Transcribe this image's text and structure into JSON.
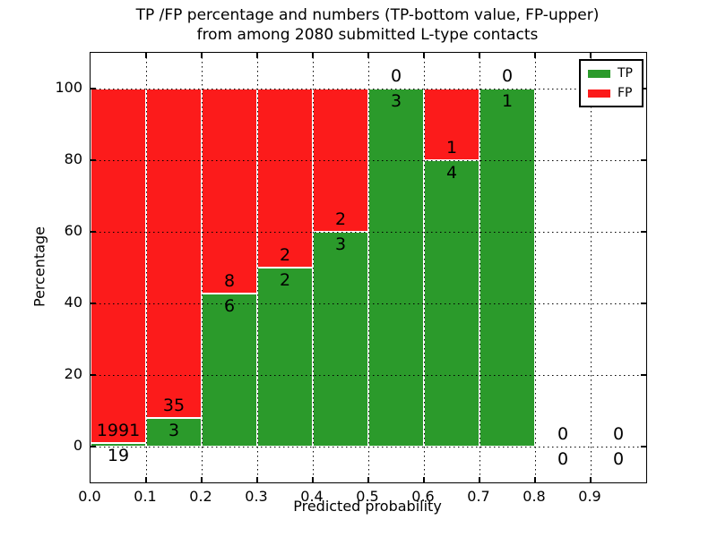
{
  "chart_data": {
    "type": "bar",
    "subtype": "stacked-percentage-histogram",
    "title_line1": "TP /FP percentage and numbers (TP-bottom value, FP-upper)",
    "title_line2": "from among 2080 submitted L-type contacts",
    "xlabel": "Predicted probability",
    "ylabel": "Percentage",
    "total_contacts": 2080,
    "x_tick_labels": [
      "0.0",
      "0.1",
      "0.2",
      "0.3",
      "0.4",
      "0.5",
      "0.6",
      "0.7",
      "0.8",
      "0.9"
    ],
    "y_ticks": [
      0,
      20,
      40,
      60,
      80,
      100
    ],
    "xlim": [
      0.0,
      1.0
    ],
    "ylim": [
      -10,
      110
    ],
    "grid": "dotted black, drawn over bars",
    "legend_position": "upper right",
    "legend": [
      {
        "label": "TP",
        "color": "#2b9a2b"
      },
      {
        "label": "FP",
        "color": "#fc1b1b"
      }
    ],
    "colors": {
      "tp": "#2b9a2b",
      "fp": "#fc1b1b",
      "bar_edge": "#ffffff"
    },
    "categories": [
      "0.0-0.1",
      "0.1-0.2",
      "0.2-0.3",
      "0.3-0.4",
      "0.4-0.5",
      "0.5-0.6",
      "0.6-0.7",
      "0.7-0.8",
      "0.8-0.9",
      "0.9-1.0"
    ],
    "series": [
      {
        "name": "TP",
        "values": [
          19,
          3,
          6,
          2,
          3,
          3,
          4,
          1,
          0,
          0
        ]
      },
      {
        "name": "FP",
        "values": [
          1991,
          35,
          8,
          2,
          2,
          0,
          1,
          0,
          0,
          0
        ]
      }
    ],
    "bins": [
      {
        "range": "0.0-0.1",
        "tp": 19,
        "fp": 1991,
        "tp_pct": 0.95
      },
      {
        "range": "0.1-0.2",
        "tp": 3,
        "fp": 35,
        "tp_pct": 7.89
      },
      {
        "range": "0.2-0.3",
        "tp": 6,
        "fp": 8,
        "tp_pct": 42.86
      },
      {
        "range": "0.3-0.4",
        "tp": 2,
        "fp": 2,
        "tp_pct": 50.0
      },
      {
        "range": "0.4-0.5",
        "tp": 3,
        "fp": 2,
        "tp_pct": 60.0
      },
      {
        "range": "0.5-0.6",
        "tp": 3,
        "fp": 0,
        "tp_pct": 100.0
      },
      {
        "range": "0.6-0.7",
        "tp": 4,
        "fp": 1,
        "tp_pct": 80.0
      },
      {
        "range": "0.7-0.8",
        "tp": 1,
        "fp": 0,
        "tp_pct": 100.0
      },
      {
        "range": "0.8-0.9",
        "tp": 0,
        "fp": 0,
        "tp_pct": 0
      },
      {
        "range": "0.9-1.0",
        "tp": 0,
        "fp": 0,
        "tp_pct": 0
      }
    ]
  }
}
